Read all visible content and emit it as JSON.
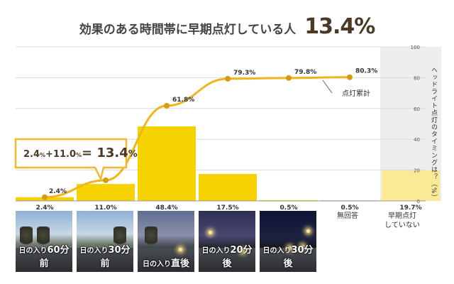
{
  "title": {
    "main": "効果のある時間帯に早期点灯している人",
    "highlight": "13.4%"
  },
  "callout": {
    "formula_left": "2.4",
    "formula_plus": "+11.0",
    "formula_unit": "%",
    "formula_eq": "= 13.4",
    "formula_pct": "%"
  },
  "y_axis_title": "ヘッドライト点灯のタイミングは？（%）",
  "legend_cumulative": "点灯累計",
  "colors": {
    "bar": "#f5d200",
    "bar_light": "#fbe996",
    "line": "#f0b41e",
    "point": "#d89a10",
    "callout": "#f2b82e",
    "highlight_band": "#eeeeee"
  },
  "chart_data": {
    "type": "bar",
    "categories": [
      "日の入り60分前",
      "日の入り30分前",
      "日の入り直後",
      "日の入り20分後",
      "日の入り30分後",
      "無回答",
      "早期点灯していない"
    ],
    "values": [
      2.4,
      11.0,
      48.4,
      17.5,
      0.5,
      0.5,
      19.7
    ],
    "value_labels": [
      "2.4%",
      "11.0%",
      "48.4%",
      "17.5%",
      "0.5%",
      "0.5%",
      "19.7%"
    ],
    "cumulative": {
      "name": "点灯累計",
      "values": [
        2.4,
        13.4,
        61.8,
        79.3,
        79.8,
        80.3
      ],
      "labels": [
        "2.4%",
        "",
        "61.8%",
        "79.3%",
        "79.8%",
        "80.3%"
      ]
    },
    "y_ticks": [
      0,
      20,
      40,
      60,
      80,
      100
    ],
    "ylim": [
      0,
      100
    ],
    "grid": true
  },
  "photos": [
    {
      "prefix": "日の入り",
      "time": "60分前"
    },
    {
      "prefix": "日の入り",
      "time": "30分前"
    },
    {
      "prefix": "日の入り",
      "time": "直後"
    },
    {
      "prefix": "日の入り",
      "time": "20分後"
    },
    {
      "prefix": "日の入り",
      "time": "30分後"
    }
  ],
  "side_labels": {
    "no_answer": "無回答",
    "not_lit_line1": "早期点灯",
    "not_lit_line2": "していない"
  }
}
